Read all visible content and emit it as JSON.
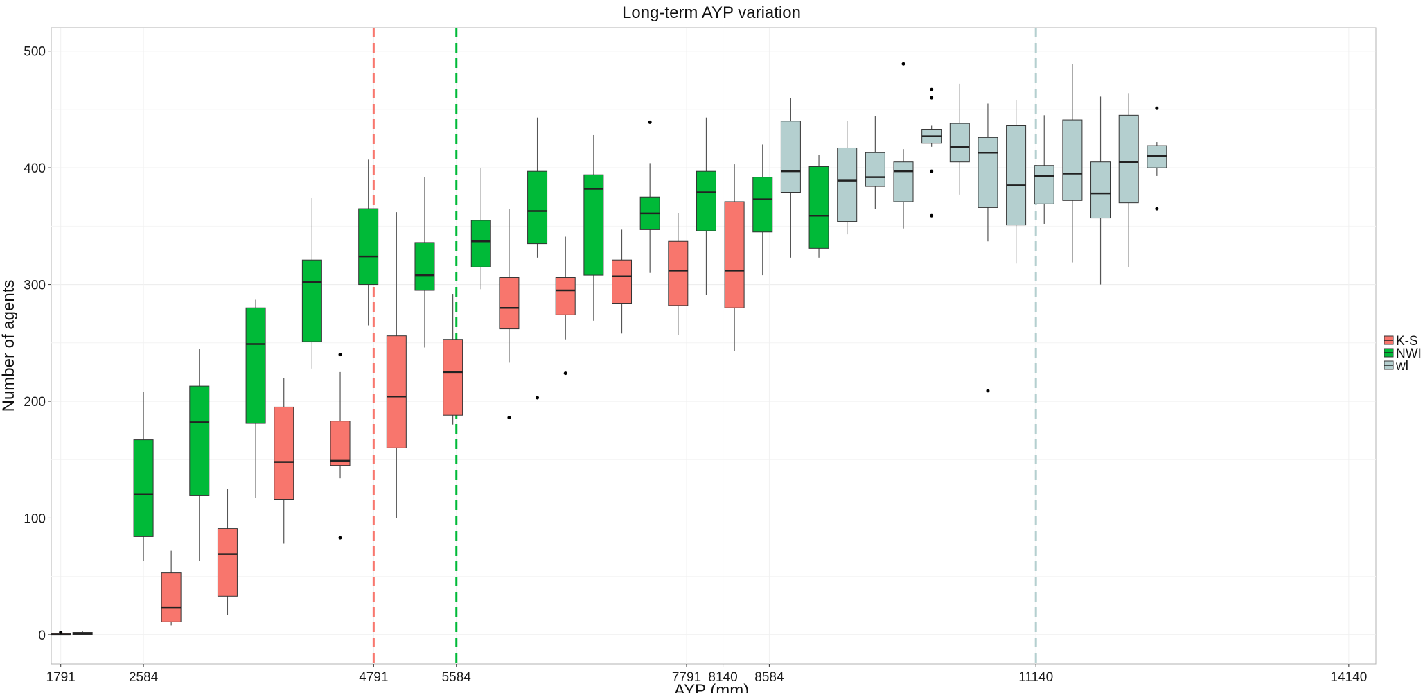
{
  "chart_data": {
    "type": "boxplot",
    "title": "Long-term AYP variation",
    "xlabel": "AYP (mm)",
    "ylabel": "Number of agents",
    "xlim": [
      1700,
      14400
    ],
    "ylim": [
      -25,
      520
    ],
    "x_ticks": [
      1791,
      2584,
      4791,
      5584,
      7791,
      8140,
      8584,
      11140,
      14140
    ],
    "y_ticks": [
      0,
      100,
      200,
      300,
      400,
      500
    ],
    "grid": true,
    "legend": {
      "placement": "right",
      "entries": [
        {
          "name": "K-S",
          "color": "#F8766D"
        },
        {
          "name": "NWI",
          "color": "#00BA38"
        },
        {
          "name": "wl",
          "color": "#B4CFCF"
        }
      ]
    },
    "vlines": [
      {
        "x": 4791,
        "color": "#F8766D"
      },
      {
        "x": 5584,
        "color": "#00BA38"
      },
      {
        "x": 11140,
        "color": "#B4CFCF"
      }
    ],
    "boxes": [
      {
        "x": 1791,
        "group": "K-S",
        "low": 0,
        "q1": 0,
        "median": 0,
        "q3": 1,
        "high": 1,
        "outliers": [
          2
        ]
      },
      {
        "x": 2000,
        "group": "K-S",
        "low": 0,
        "q1": 0,
        "median": 1,
        "q3": 2,
        "high": 3,
        "outliers": []
      },
      {
        "x": 2584,
        "group": "NWI",
        "low": 63,
        "q1": 84,
        "median": 120,
        "q3": 167,
        "high": 208,
        "outliers": []
      },
      {
        "x": 2850,
        "group": "K-S",
        "low": 8,
        "q1": 11,
        "median": 23,
        "q3": 53,
        "high": 72,
        "outliers": []
      },
      {
        "x": 3120,
        "group": "NWI",
        "low": 63,
        "q1": 119,
        "median": 182,
        "q3": 213,
        "high": 245,
        "outliers": []
      },
      {
        "x": 3390,
        "group": "K-S",
        "low": 17,
        "q1": 33,
        "median": 69,
        "q3": 91,
        "high": 125,
        "outliers": []
      },
      {
        "x": 3660,
        "group": "NWI",
        "low": 117,
        "q1": 181,
        "median": 249,
        "q3": 280,
        "high": 287,
        "outliers": []
      },
      {
        "x": 3930,
        "group": "K-S",
        "low": 78,
        "q1": 116,
        "median": 148,
        "q3": 195,
        "high": 220,
        "outliers": []
      },
      {
        "x": 4200,
        "group": "NWI",
        "low": 228,
        "q1": 251,
        "median": 302,
        "q3": 321,
        "high": 374,
        "outliers": []
      },
      {
        "x": 4470,
        "group": "K-S",
        "low": 134,
        "q1": 145,
        "median": 149,
        "q3": 183,
        "high": 225,
        "outliers": [
          240,
          83
        ]
      },
      {
        "x": 4740,
        "group": "NWI",
        "low": 265,
        "q1": 300,
        "median": 324,
        "q3": 365,
        "high": 407,
        "outliers": []
      },
      {
        "x": 5010,
        "group": "K-S",
        "low": 100,
        "q1": 160,
        "median": 204,
        "q3": 256,
        "high": 362,
        "outliers": []
      },
      {
        "x": 5280,
        "group": "NWI",
        "low": 246,
        "q1": 295,
        "median": 308,
        "q3": 336,
        "high": 392,
        "outliers": []
      },
      {
        "x": 5550,
        "group": "K-S",
        "low": 180,
        "q1": 188,
        "median": 225,
        "q3": 253,
        "high": 292,
        "outliers": []
      },
      {
        "x": 5820,
        "group": "NWI",
        "low": 296,
        "q1": 315,
        "median": 337,
        "q3": 355,
        "high": 400,
        "outliers": []
      },
      {
        "x": 6090,
        "group": "K-S",
        "low": 233,
        "q1": 262,
        "median": 280,
        "q3": 306,
        "high": 365,
        "outliers": [
          186
        ]
      },
      {
        "x": 6360,
        "group": "NWI",
        "low": 323,
        "q1": 335,
        "median": 363,
        "q3": 397,
        "high": 443,
        "outliers": [
          203
        ]
      },
      {
        "x": 6630,
        "group": "K-S",
        "low": 253,
        "q1": 274,
        "median": 295,
        "q3": 306,
        "high": 341,
        "outliers": [
          224
        ]
      },
      {
        "x": 6900,
        "group": "NWI",
        "low": 269,
        "q1": 308,
        "median": 382,
        "q3": 394,
        "high": 428,
        "outliers": []
      },
      {
        "x": 7170,
        "group": "K-S",
        "low": 258,
        "q1": 284,
        "median": 307,
        "q3": 321,
        "high": 347,
        "outliers": []
      },
      {
        "x": 7440,
        "group": "NWI",
        "low": 310,
        "q1": 347,
        "median": 361,
        "q3": 375,
        "high": 404,
        "outliers": [
          439
        ]
      },
      {
        "x": 7710,
        "group": "K-S",
        "low": 257,
        "q1": 282,
        "median": 312,
        "q3": 337,
        "high": 361,
        "outliers": []
      },
      {
        "x": 7980,
        "group": "NWI",
        "low": 291,
        "q1": 346,
        "median": 379,
        "q3": 397,
        "high": 443,
        "outliers": []
      },
      {
        "x": 8250,
        "group": "K-S",
        "low": 243,
        "q1": 280,
        "median": 312,
        "q3": 371,
        "high": 403,
        "outliers": []
      },
      {
        "x": 8520,
        "group": "NWI",
        "low": 308,
        "q1": 345,
        "median": 373,
        "q3": 392,
        "high": 420,
        "outliers": []
      },
      {
        "x": 8790,
        "group": "wl",
        "low": 323,
        "q1": 379,
        "median": 397,
        "q3": 440,
        "high": 460,
        "outliers": []
      },
      {
        "x": 9060,
        "group": "NWI",
        "low": 323,
        "q1": 331,
        "median": 359,
        "q3": 401,
        "high": 411,
        "outliers": []
      },
      {
        "x": 9330,
        "group": "wl",
        "low": 343,
        "q1": 354,
        "median": 389,
        "q3": 417,
        "high": 440,
        "outliers": []
      },
      {
        "x": 9600,
        "group": "wl",
        "low": 365,
        "q1": 384,
        "median": 392,
        "q3": 413,
        "high": 444,
        "outliers": []
      },
      {
        "x": 9870,
        "group": "wl",
        "low": 348,
        "q1": 371,
        "median": 397,
        "q3": 405,
        "high": 416,
        "outliers": [
          489
        ]
      },
      {
        "x": 10140,
        "group": "wl",
        "low": 418,
        "q1": 421,
        "median": 427,
        "q3": 433,
        "high": 436,
        "outliers": [
          467,
          460,
          397,
          359
        ]
      },
      {
        "x": 10410,
        "group": "wl",
        "low": 377,
        "q1": 405,
        "median": 418,
        "q3": 438,
        "high": 472,
        "outliers": []
      },
      {
        "x": 10680,
        "group": "wl",
        "low": 337,
        "q1": 366,
        "median": 413,
        "q3": 426,
        "high": 455,
        "outliers": [
          209
        ]
      },
      {
        "x": 10950,
        "group": "wl",
        "low": 318,
        "q1": 351,
        "median": 385,
        "q3": 436,
        "high": 458,
        "outliers": []
      },
      {
        "x": 11220,
        "group": "wl",
        "low": 352,
        "q1": 369,
        "median": 393,
        "q3": 402,
        "high": 445,
        "outliers": []
      },
      {
        "x": 11490,
        "group": "wl",
        "low": 319,
        "q1": 372,
        "median": 395,
        "q3": 441,
        "high": 489,
        "outliers": []
      },
      {
        "x": 11760,
        "group": "wl",
        "low": 300,
        "q1": 357,
        "median": 378,
        "q3": 405,
        "high": 461,
        "outliers": []
      },
      {
        "x": 12030,
        "group": "wl",
        "low": 315,
        "q1": 370,
        "median": 405,
        "q3": 445,
        "high": 464,
        "outliers": []
      },
      {
        "x": 12300,
        "group": "wl",
        "low": 393,
        "q1": 400,
        "median": 410,
        "q3": 419,
        "high": 422,
        "outliers": [
          451,
          365
        ]
      }
    ]
  }
}
